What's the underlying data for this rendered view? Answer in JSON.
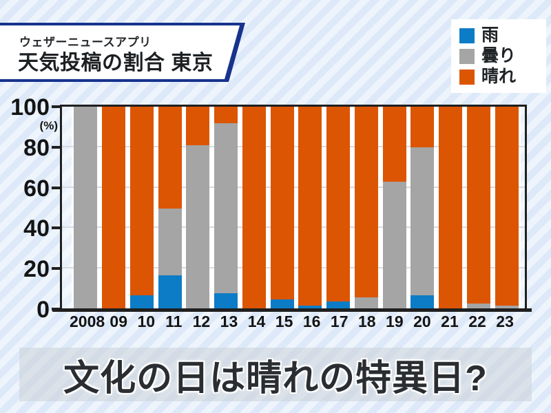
{
  "header": {
    "subtitle": "ウェザーニュースアプリ",
    "title": "天気投稿の割合 東京"
  },
  "footer": {
    "headline": "文化の日は晴れの特異日?"
  },
  "colors": {
    "rain": "#0d7cc6",
    "cloudy": "#a5a5a5",
    "sunny": "#dc5502",
    "axis": "#1f1f1f",
    "background_stripe_dark": "#dde9f8",
    "background_stripe_light": "#eef4fc",
    "header_border": "#17338d"
  },
  "chart_data": {
    "type": "bar",
    "stacked": true,
    "title": "天気投稿の割合 東京",
    "unit": "(%)",
    "categories": [
      "2008",
      "09",
      "10",
      "11",
      "12",
      "13",
      "14",
      "15",
      "16",
      "17",
      "18",
      "19",
      "20",
      "21",
      "22",
      "23"
    ],
    "series": [
      {
        "name": "雨",
        "color": "#0d7cc6",
        "values": [
          0,
          0,
          7,
          17,
          0,
          8,
          0,
          5,
          2,
          4,
          0,
          0,
          7,
          0,
          0,
          0
        ]
      },
      {
        "name": "曇り",
        "color": "#a5a5a5",
        "values": [
          100,
          0,
          0,
          33,
          81,
          84,
          0,
          0,
          0,
          0,
          6,
          63,
          73,
          0,
          3,
          2
        ]
      },
      {
        "name": "晴れ",
        "color": "#dc5502",
        "values": [
          0,
          100,
          93,
          50,
          19,
          8,
          100,
          95,
          98,
          96,
          94,
          37,
          20,
          100,
          97,
          98
        ]
      }
    ],
    "ylabel": "(%)",
    "ylim": [
      0,
      100
    ],
    "yticks": [
      0,
      20,
      40,
      60,
      80,
      100
    ],
    "grid": true,
    "legend_position": "top-right"
  }
}
